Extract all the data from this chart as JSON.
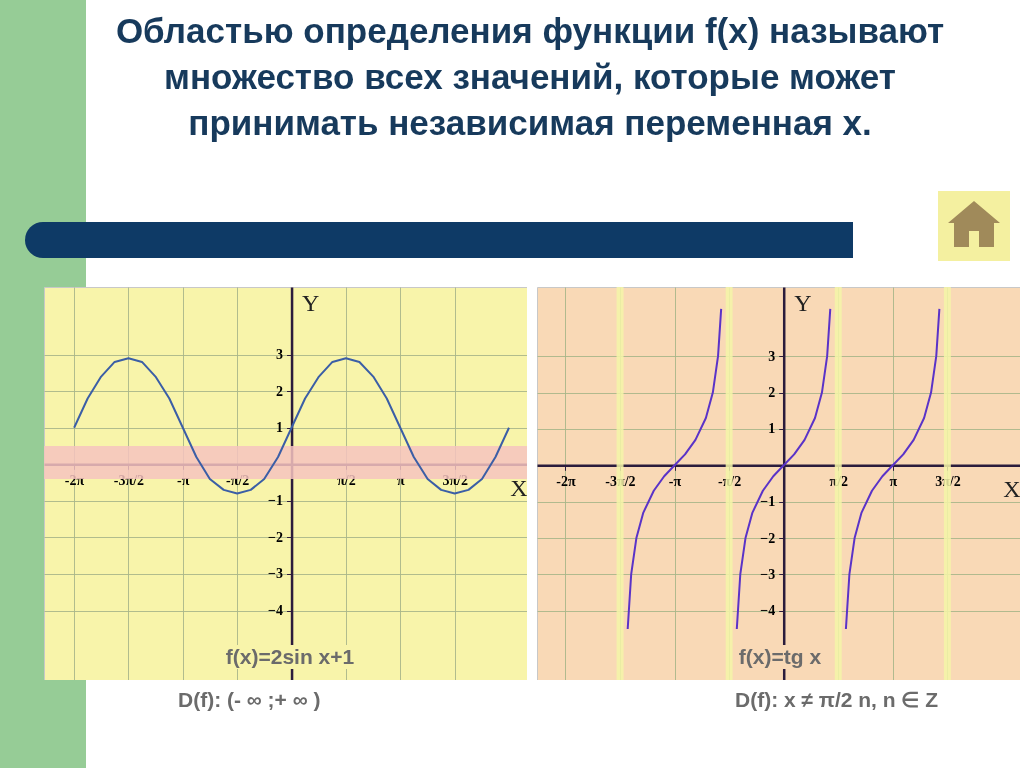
{
  "chart_data": [
    {
      "type": "line",
      "title": "Областью определения функции f(x) называют множество всех значений, которые может принимать независимая переменная x.",
      "xlabel": "X",
      "ylabel": "Y",
      "xlim": [
        -7.15,
        6.8
      ],
      "ylim": [
        -5.9,
        4.85
      ],
      "xticks": [
        {
          "value": -6.283,
          "label": "-2π"
        },
        {
          "value": -4.712,
          "label": "-3π/2"
        },
        {
          "value": -3.142,
          "label": "-π"
        },
        {
          "value": -1.571,
          "label": "-π/2"
        },
        {
          "value": 1.571,
          "label": "π/2"
        },
        {
          "value": 3.142,
          "label": "π"
        },
        {
          "value": 4.712,
          "label": "3π/2"
        }
      ],
      "yticks": [
        -4,
        -3,
        -2,
        -1,
        1,
        2,
        3
      ],
      "grid": true,
      "bands": [
        {
          "axis": "y",
          "from": -0.4,
          "to": 0.5,
          "color": "#f6c3bf"
        }
      ],
      "series": [
        {
          "color": "#3b5ea6",
          "x": [
            -6.28,
            -5.89,
            -5.5,
            -5.11,
            -4.71,
            -4.32,
            -3.93,
            -3.53,
            -3.14,
            -2.75,
            -2.36,
            -1.96,
            -1.57,
            -1.18,
            -0.79,
            -0.39,
            0,
            0.39,
            0.79,
            1.18,
            1.57,
            1.96,
            2.36,
            2.75,
            3.14,
            3.53,
            3.93,
            4.32,
            4.71,
            5.11,
            5.5,
            5.89,
            6.28
          ],
          "values": [
            1,
            1.8,
            2.4,
            2.8,
            2.9,
            2.8,
            2.4,
            1.8,
            1,
            0.2,
            -0.4,
            -0.7,
            -0.8,
            -0.7,
            -0.4,
            0.2,
            1,
            1.8,
            2.4,
            2.8,
            2.9,
            2.8,
            2.4,
            1.8,
            1,
            0.2,
            -0.4,
            -0.7,
            -0.8,
            -0.7,
            -0.4,
            0.2,
            1
          ]
        }
      ],
      "annotations": [
        "f(x)=2sin x+1",
        "D(f): (- ∞ ;+ ∞ )"
      ]
    },
    {
      "type": "line",
      "xlabel": "X",
      "ylabel": "Y",
      "xlim": [
        -7.1,
        6.8
      ],
      "ylim": [
        -5.9,
        4.9
      ],
      "xticks": [
        {
          "value": -6.283,
          "label": "-2π"
        },
        {
          "value": -4.712,
          "label": "-3π/2"
        },
        {
          "value": -3.142,
          "label": "-π"
        },
        {
          "value": -1.571,
          "label": "-π/2"
        },
        {
          "value": 1.571,
          "label": "π/2"
        },
        {
          "value": 3.142,
          "label": "π"
        },
        {
          "value": 4.712,
          "label": "3π/2"
        }
      ],
      "yticks": [
        -4,
        -3,
        -2,
        -1,
        1,
        2,
        3
      ],
      "grid": true,
      "bands": [
        {
          "axis": "x",
          "from": -4.81,
          "to": -4.61,
          "color": "#f4f5a8"
        },
        {
          "axis": "x",
          "from": -1.67,
          "to": -1.47,
          "color": "#f4f5a8"
        },
        {
          "axis": "x",
          "from": 1.47,
          "to": 1.67,
          "color": "#f4f5a8"
        },
        {
          "axis": "x",
          "from": 4.61,
          "to": 4.81,
          "color": "#f4f5a8"
        }
      ],
      "series": [
        {
          "color": "#5a33c8",
          "x": [
            -4.49,
            -4.39,
            -4.24,
            -4.04,
            -3.74,
            -3.44,
            -3.14,
            -2.84,
            -2.54,
            -2.24,
            -2.04,
            -1.89,
            -1.8
          ],
          "values": [
            -4.5,
            -3.0,
            -2.0,
            -1.3,
            -0.7,
            -0.3,
            0,
            0.3,
            0.7,
            1.3,
            2.0,
            3.0,
            4.3
          ]
        },
        {
          "color": "#5a33c8",
          "x": [
            -1.35,
            -1.25,
            -1.1,
            -0.9,
            -0.6,
            -0.3,
            0,
            0.3,
            0.6,
            0.9,
            1.1,
            1.25,
            1.34
          ],
          "values": [
            -4.5,
            -3.0,
            -2.0,
            -1.3,
            -0.7,
            -0.3,
            0,
            0.3,
            0.7,
            1.3,
            2.0,
            3.0,
            4.3
          ]
        },
        {
          "color": "#5a33c8",
          "x": [
            1.79,
            1.89,
            2.04,
            2.24,
            2.54,
            2.84,
            3.14,
            3.44,
            3.74,
            4.04,
            4.24,
            4.39,
            4.48
          ],
          "values": [
            -4.5,
            -3.0,
            -2.0,
            -1.3,
            -0.7,
            -0.3,
            0,
            0.3,
            0.7,
            1.3,
            2.0,
            3.0,
            4.3
          ]
        }
      ],
      "annotations": [
        "f(x)=tg x",
        "D(f): x ≠ π/2 n, n ∈ Z"
      ]
    }
  ]
}
